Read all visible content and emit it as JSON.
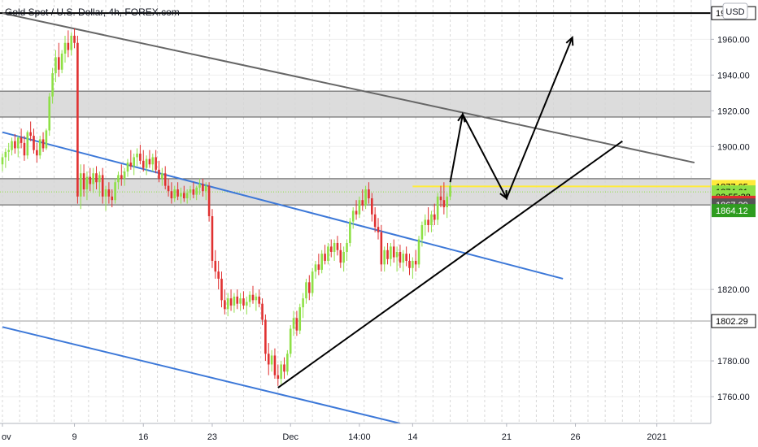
{
  "header": {
    "title": "Gold Spot / U.S. Dollar, 4h, FOREX.com",
    "currency_button": "USD"
  },
  "chart_data": {
    "type": "candlestick",
    "title": "Gold Spot / U.S. Dollar, 4h, FOREX.com",
    "currency": "USD",
    "ylim": [
      1745,
      1982
    ],
    "y_ticks": [
      {
        "value": 1760,
        "label": "1760.00"
      },
      {
        "value": 1780,
        "label": "1780.00"
      },
      {
        "value": 1820,
        "label": "1820.00"
      },
      {
        "value": 1900,
        "label": "1900.00"
      },
      {
        "value": 1920,
        "label": "1920.00"
      },
      {
        "value": 1940,
        "label": "1940.00"
      },
      {
        "value": 1960,
        "label": "1960.00"
      }
    ],
    "x_ticks": [
      {
        "label": "ov",
        "bar": 0
      },
      {
        "label": "9",
        "bar": 23
      },
      {
        "label": "16",
        "bar": 45
      },
      {
        "label": "23",
        "bar": 67
      },
      {
        "label": "Dec",
        "bar": 92
      },
      {
        "label": "14:00",
        "bar": 114
      },
      {
        "label": "14",
        "bar": 131
      },
      {
        "label": "21",
        "bar": 161
      },
      {
        "label": "26",
        "bar": 183
      },
      {
        "label": "2021",
        "bar": 209
      }
    ],
    "bars_total": 221,
    "up_color": "#8ee046",
    "down_color": "#e03131",
    "candles": [
      [
        1890,
        1896,
        1886,
        1894
      ],
      [
        1894,
        1899,
        1888,
        1897
      ],
      [
        1897,
        1902,
        1892,
        1898
      ],
      [
        1898,
        1905,
        1895,
        1903
      ],
      [
        1903,
        1907,
        1896,
        1899
      ],
      [
        1899,
        1906,
        1894,
        1905
      ],
      [
        1905,
        1910,
        1899,
        1902
      ],
      [
        1902,
        1906,
        1892,
        1895
      ],
      [
        1895,
        1909,
        1893,
        1908
      ],
      [
        1908,
        1914,
        1903,
        1906
      ],
      [
        1906,
        1910,
        1896,
        1898
      ],
      [
        1898,
        1902,
        1891,
        1895
      ],
      [
        1895,
        1906,
        1893,
        1904
      ],
      [
        1904,
        1908,
        1897,
        1899
      ],
      [
        1899,
        1910,
        1898,
        1909
      ],
      [
        1909,
        1930,
        1906,
        1928
      ],
      [
        1928,
        1944,
        1924,
        1941
      ],
      [
        1941,
        1954,
        1936,
        1950
      ],
      [
        1950,
        1958,
        1939,
        1943
      ],
      [
        1943,
        1954,
        1941,
        1952
      ],
      [
        1952,
        1962,
        1947,
        1958
      ],
      [
        1958,
        1965,
        1950,
        1954
      ],
      [
        1954,
        1964,
        1951,
        1962
      ],
      [
        1962,
        1966,
        1955,
        1958
      ],
      [
        1958,
        1962,
        1868,
        1872
      ],
      [
        1872,
        1890,
        1865,
        1885
      ],
      [
        1885,
        1890,
        1872,
        1876
      ],
      [
        1876,
        1886,
        1870,
        1883
      ],
      [
        1883,
        1888,
        1875,
        1879
      ],
      [
        1879,
        1888,
        1874,
        1885
      ],
      [
        1885,
        1889,
        1876,
        1880
      ],
      [
        1880,
        1886,
        1872,
        1884
      ],
      [
        1884,
        1888,
        1868,
        1872
      ],
      [
        1872,
        1878,
        1864,
        1876
      ],
      [
        1876,
        1880,
        1868,
        1872
      ],
      [
        1872,
        1876,
        1866,
        1870
      ],
      [
        1870,
        1882,
        1868,
        1880
      ],
      [
        1880,
        1886,
        1876,
        1884
      ],
      [
        1884,
        1890,
        1878,
        1882
      ],
      [
        1882,
        1888,
        1878,
        1886
      ],
      [
        1886,
        1893,
        1883,
        1891
      ],
      [
        1891,
        1898,
        1887,
        1889
      ],
      [
        1889,
        1896,
        1884,
        1894
      ],
      [
        1894,
        1899,
        1889,
        1896
      ],
      [
        1896,
        1901,
        1890,
        1892
      ],
      [
        1892,
        1898,
        1886,
        1888
      ],
      [
        1888,
        1895,
        1884,
        1893
      ],
      [
        1893,
        1898,
        1888,
        1890
      ],
      [
        1890,
        1896,
        1886,
        1894
      ],
      [
        1894,
        1898,
        1885,
        1887
      ],
      [
        1887,
        1892,
        1880,
        1882
      ],
      [
        1882,
        1888,
        1878,
        1885
      ],
      [
        1885,
        1889,
        1876,
        1878
      ],
      [
        1878,
        1882,
        1872,
        1875
      ],
      [
        1875,
        1880,
        1868,
        1871
      ],
      [
        1871,
        1878,
        1869,
        1876
      ],
      [
        1876,
        1880,
        1870,
        1872
      ],
      [
        1872,
        1877,
        1868,
        1874
      ],
      [
        1874,
        1878,
        1869,
        1871
      ],
      [
        1871,
        1876,
        1868,
        1874
      ],
      [
        1874,
        1878,
        1870,
        1876
      ],
      [
        1876,
        1880,
        1871,
        1873
      ],
      [
        1873,
        1878,
        1870,
        1877
      ],
      [
        1877,
        1882,
        1873,
        1879
      ],
      [
        1879,
        1882,
        1872,
        1875
      ],
      [
        1875,
        1880,
        1870,
        1878
      ],
      [
        1878,
        1880,
        1858,
        1861
      ],
      [
        1861,
        1865,
        1832,
        1836
      ],
      [
        1836,
        1842,
        1826,
        1830
      ],
      [
        1830,
        1836,
        1820,
        1826
      ],
      [
        1826,
        1830,
        1810,
        1814
      ],
      [
        1814,
        1820,
        1806,
        1809
      ],
      [
        1809,
        1818,
        1805,
        1815
      ],
      [
        1815,
        1820,
        1808,
        1811
      ],
      [
        1811,
        1818,
        1807,
        1816
      ],
      [
        1816,
        1820,
        1809,
        1812
      ],
      [
        1812,
        1818,
        1808,
        1815
      ],
      [
        1815,
        1819,
        1809,
        1811
      ],
      [
        1811,
        1816,
        1806,
        1813
      ],
      [
        1813,
        1819,
        1810,
        1817
      ],
      [
        1817,
        1822,
        1812,
        1814
      ],
      [
        1814,
        1818,
        1808,
        1816
      ],
      [
        1816,
        1820,
        1810,
        1812
      ],
      [
        1812,
        1815,
        1800,
        1803
      ],
      [
        1803,
        1806,
        1780,
        1784
      ],
      [
        1784,
        1790,
        1772,
        1778
      ],
      [
        1778,
        1786,
        1774,
        1783
      ],
      [
        1783,
        1787,
        1770,
        1772
      ],
      [
        1772,
        1778,
        1766,
        1770
      ],
      [
        1770,
        1780,
        1767,
        1778
      ],
      [
        1778,
        1782,
        1770,
        1774
      ],
      [
        1774,
        1786,
        1772,
        1784
      ],
      [
        1784,
        1800,
        1782,
        1798
      ],
      [
        1798,
        1808,
        1794,
        1804
      ],
      [
        1804,
        1808,
        1794,
        1797
      ],
      [
        1797,
        1812,
        1795,
        1810
      ],
      [
        1810,
        1818,
        1804,
        1815
      ],
      [
        1815,
        1826,
        1812,
        1824
      ],
      [
        1824,
        1828,
        1814,
        1818
      ],
      [
        1818,
        1832,
        1816,
        1830
      ],
      [
        1830,
        1836,
        1826,
        1834
      ],
      [
        1834,
        1840,
        1828,
        1831
      ],
      [
        1831,
        1842,
        1829,
        1840
      ],
      [
        1840,
        1845,
        1834,
        1836
      ],
      [
        1836,
        1846,
        1834,
        1844
      ],
      [
        1844,
        1848,
        1838,
        1841
      ],
      [
        1841,
        1848,
        1836,
        1846
      ],
      [
        1846,
        1850,
        1839,
        1842
      ],
      [
        1842,
        1846,
        1832,
        1835
      ],
      [
        1835,
        1844,
        1830,
        1841
      ],
      [
        1841,
        1848,
        1836,
        1846
      ],
      [
        1846,
        1860,
        1844,
        1858
      ],
      [
        1858,
        1866,
        1854,
        1864
      ],
      [
        1864,
        1870,
        1859,
        1862
      ],
      [
        1862,
        1872,
        1860,
        1870
      ],
      [
        1870,
        1876,
        1864,
        1867
      ],
      [
        1867,
        1878,
        1865,
        1876
      ],
      [
        1876,
        1880,
        1868,
        1871
      ],
      [
        1871,
        1874,
        1858,
        1862
      ],
      [
        1862,
        1866,
        1852,
        1855
      ],
      [
        1855,
        1860,
        1848,
        1852
      ],
      [
        1852,
        1856,
        1830,
        1834
      ],
      [
        1834,
        1844,
        1830,
        1842
      ],
      [
        1842,
        1846,
        1834,
        1837
      ],
      [
        1837,
        1846,
        1833,
        1844
      ],
      [
        1844,
        1848,
        1835,
        1838
      ],
      [
        1838,
        1844,
        1830,
        1841
      ],
      [
        1841,
        1845,
        1832,
        1835
      ],
      [
        1835,
        1842,
        1830,
        1840
      ],
      [
        1840,
        1844,
        1833,
        1836
      ],
      [
        1836,
        1840,
        1828,
        1832
      ],
      [
        1832,
        1838,
        1826,
        1836
      ],
      [
        1836,
        1842,
        1830,
        1834
      ],
      [
        1834,
        1850,
        1832,
        1848
      ],
      [
        1848,
        1858,
        1844,
        1856
      ],
      [
        1856,
        1862,
        1850,
        1859
      ],
      [
        1859,
        1866,
        1852,
        1856
      ],
      [
        1856,
        1864,
        1852,
        1862
      ],
      [
        1862,
        1868,
        1856,
        1859
      ],
      [
        1859,
        1874,
        1856,
        1872
      ],
      [
        1872,
        1878,
        1866,
        1870
      ],
      [
        1870,
        1880,
        1862,
        1866
      ],
      [
        1866,
        1874,
        1860,
        1872
      ],
      [
        1872,
        1880,
        1870,
        1878
      ]
    ],
    "horizontal_lines": [
      {
        "value": 1974.64,
        "label": "1974.64",
        "style": "black",
        "tag_bg": "#ffffff",
        "tag_fg": "#000000"
      },
      {
        "value": 1877.65,
        "label": "1877.65",
        "style": "yellow",
        "tag_bg": "#ffeb3b",
        "tag_fg": "#000000"
      },
      {
        "value": 1802.29,
        "label": "1802.29",
        "style": "gray",
        "tag_bg": "#ffffff",
        "tag_fg": "#000000"
      }
    ],
    "zones": [
      {
        "from": 1916.5,
        "to": 1931
      },
      {
        "from": 1867.3,
        "to": 1882
      }
    ],
    "price_tags": [
      {
        "value": 1874.61,
        "label": "1874.61",
        "bg": "#8ee046",
        "fg": "#000000"
      },
      {
        "value": 1871.9,
        "label": "02:55:38",
        "bg": "#8ee046",
        "fg": "#000000"
      },
      {
        "value": 1868.79,
        "label": "1868.79",
        "bg": "#e03131",
        "fg": "#ffffff"
      },
      {
        "value": 1867.29,
        "label": "1867.29",
        "bg": "#555555",
        "fg": "#ffffff"
      },
      {
        "value": 1864.12,
        "label": "1864.12",
        "bg": "#2e9c1f",
        "fg": "#ffffff"
      }
    ],
    "trendlines": [
      {
        "color": "#666666",
        "from": {
          "bar": 0,
          "value": 1974.64
        },
        "to": {
          "bar": 221,
          "value": 1891
        }
      },
      {
        "color": "#3c78d8",
        "from": {
          "bar": 0,
          "value": 1908
        },
        "to": {
          "bar": 179,
          "value": 1826
        }
      },
      {
        "color": "#3c78d8",
        "from": {
          "bar": 0,
          "value": 1799
        },
        "to": {
          "bar": 127,
          "value": 1745
        }
      },
      {
        "color": "#000000",
        "from": {
          "bar": 88,
          "value": 1765
        },
        "to": {
          "bar": 198,
          "value": 1903
        }
      }
    ],
    "projection_path": [
      {
        "bar": 143,
        "value": 1880
      },
      {
        "bar": 147,
        "value": 1918
      },
      {
        "bar": 161,
        "value": 1871
      },
      {
        "bar": 182,
        "value": 1961
      }
    ]
  }
}
